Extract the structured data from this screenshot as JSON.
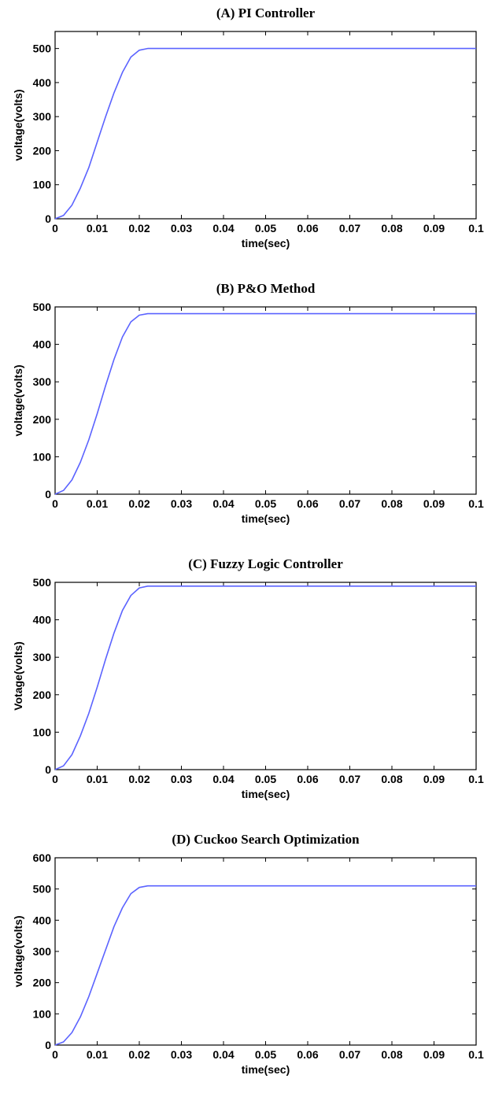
{
  "colors": {
    "line": "#5b63ff",
    "axis": "#000000",
    "background": "#ffffff"
  },
  "chart_data": [
    {
      "type": "line",
      "title": "(A) PI Controller",
      "xlabel": "time(sec)",
      "ylabel": "voltage(volts)",
      "xlim": [
        0,
        0.1
      ],
      "ylim": [
        0,
        550
      ],
      "xticks": [
        0,
        0.01,
        0.02,
        0.03,
        0.04,
        0.05,
        0.06,
        0.07,
        0.08,
        0.09,
        0.1
      ],
      "xtick_labels": [
        "0",
        "0.01",
        "0.02",
        "0.03",
        "0.04",
        "0.05",
        "0.06",
        "0.07",
        "0.08",
        "0.09",
        "0.1"
      ],
      "yticks": [
        0,
        100,
        200,
        300,
        400,
        500
      ],
      "ytick_labels": [
        "0",
        "100",
        "200",
        "300",
        "400",
        "500"
      ],
      "grid": false,
      "series": [
        {
          "x": [
            0,
            0.002,
            0.004,
            0.006,
            0.008,
            0.01,
            0.012,
            0.014,
            0.016,
            0.018,
            0.02,
            0.022,
            0.024,
            0.03,
            0.05,
            0.07,
            0.1
          ],
          "y": [
            0,
            10,
            40,
            90,
            150,
            225,
            300,
            370,
            430,
            475,
            495,
            500,
            500,
            500,
            500,
            500,
            500
          ]
        }
      ]
    },
    {
      "type": "line",
      "title": "(B) P&O Method",
      "xlabel": "time(sec)",
      "ylabel": "voltage(volts)",
      "xlim": [
        0,
        0.1
      ],
      "ylim": [
        0,
        500
      ],
      "xticks": [
        0,
        0.01,
        0.02,
        0.03,
        0.04,
        0.05,
        0.06,
        0.07,
        0.08,
        0.09,
        0.1
      ],
      "xtick_labels": [
        "0",
        "0.01",
        "0.02",
        "0.03",
        "0.04",
        "0.05",
        "0.06",
        "0.07",
        "0.08",
        "0.09",
        "0.1"
      ],
      "yticks": [
        0,
        100,
        200,
        300,
        400,
        500
      ],
      "ytick_labels": [
        "0",
        "100",
        "200",
        "300",
        "400",
        "500"
      ],
      "grid": false,
      "series": [
        {
          "x": [
            0,
            0.002,
            0.004,
            0.006,
            0.008,
            0.01,
            0.012,
            0.014,
            0.016,
            0.018,
            0.02,
            0.022,
            0.024,
            0.03,
            0.05,
            0.07,
            0.1
          ],
          "y": [
            0,
            10,
            38,
            85,
            145,
            215,
            290,
            360,
            420,
            460,
            478,
            482,
            482,
            482,
            482,
            482,
            482
          ]
        }
      ]
    },
    {
      "type": "line",
      "title": "(C) Fuzzy Logic Controller",
      "xlabel": "time(sec)",
      "ylabel": "Votage(volts)",
      "xlim": [
        0,
        0.1
      ],
      "ylim": [
        0,
        500
      ],
      "xticks": [
        0,
        0.01,
        0.02,
        0.03,
        0.04,
        0.05,
        0.06,
        0.07,
        0.08,
        0.09,
        0.1
      ],
      "xtick_labels": [
        "0",
        "0.01",
        "0.02",
        "0.03",
        "0.04",
        "0.05",
        "0.06",
        "0.07",
        "0.08",
        "0.09",
        "0.1"
      ],
      "yticks": [
        0,
        100,
        200,
        300,
        400,
        500
      ],
      "ytick_labels": [
        "0",
        "100",
        "200",
        "300",
        "400",
        "500"
      ],
      "grid": false,
      "series": [
        {
          "x": [
            0,
            0.002,
            0.004,
            0.006,
            0.008,
            0.01,
            0.012,
            0.014,
            0.016,
            0.018,
            0.02,
            0.022,
            0.024,
            0.03,
            0.05,
            0.07,
            0.1
          ],
          "y": [
            0,
            10,
            40,
            90,
            150,
            220,
            295,
            365,
            425,
            465,
            485,
            490,
            490,
            490,
            490,
            490,
            490
          ]
        }
      ]
    },
    {
      "type": "line",
      "title": "(D) Cuckoo Search Optimization",
      "xlabel": "time(sec)",
      "ylabel": "voltage(volts)",
      "xlim": [
        0,
        0.1
      ],
      "ylim": [
        0,
        600
      ],
      "xticks": [
        0,
        0.01,
        0.02,
        0.03,
        0.04,
        0.05,
        0.06,
        0.07,
        0.08,
        0.09,
        0.1
      ],
      "xtick_labels": [
        "0",
        "0.01",
        "0.02",
        "0.03",
        "0.04",
        "0.05",
        "0.06",
        "0.07",
        "0.08",
        "0.09",
        "0.1"
      ],
      "yticks": [
        0,
        100,
        200,
        300,
        400,
        500,
        600
      ],
      "ytick_labels": [
        "0",
        "100",
        "200",
        "300",
        "400",
        "500",
        "600"
      ],
      "grid": false,
      "series": [
        {
          "x": [
            0,
            0.002,
            0.004,
            0.006,
            0.008,
            0.01,
            0.012,
            0.014,
            0.016,
            0.018,
            0.02,
            0.022,
            0.024,
            0.03,
            0.05,
            0.07,
            0.1
          ],
          "y": [
            0,
            10,
            40,
            90,
            155,
            230,
            305,
            380,
            440,
            485,
            505,
            510,
            510,
            510,
            510,
            510,
            510
          ]
        }
      ]
    }
  ]
}
